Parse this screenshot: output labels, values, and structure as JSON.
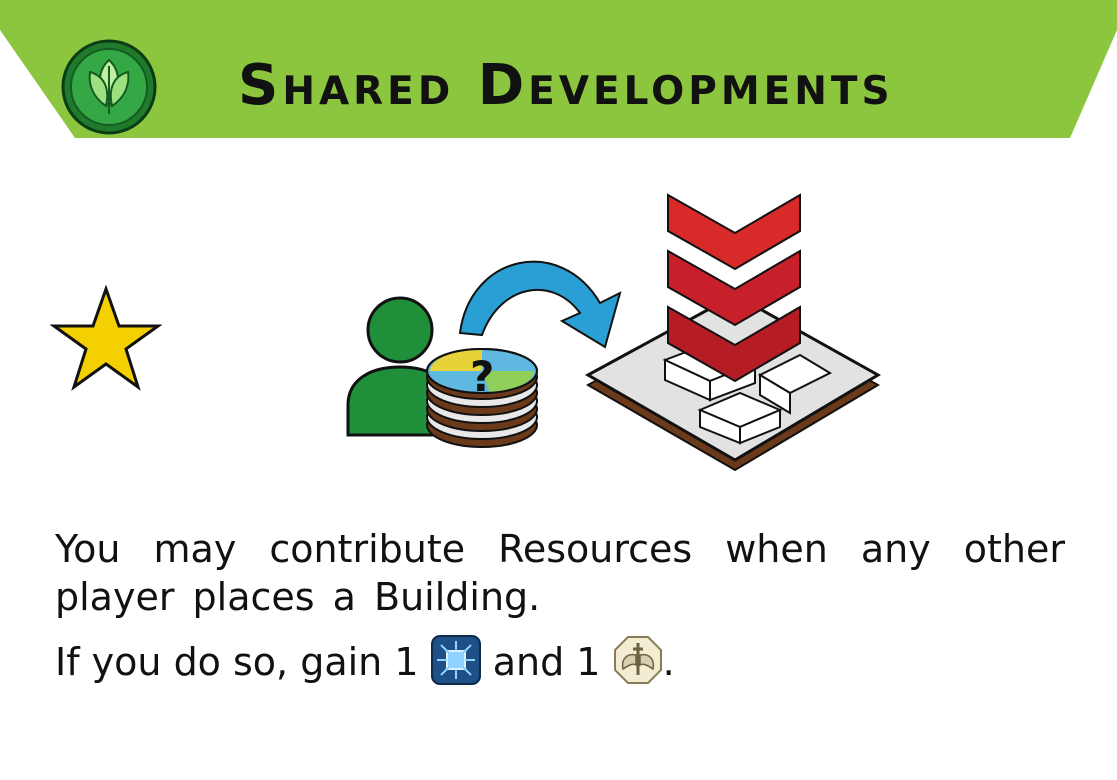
{
  "card": {
    "title": "Shared Developments",
    "icons": {
      "badge": "leaf-badge-icon",
      "cost": "star-icon",
      "illustration": "contribute-resources-illustration",
      "reward_1": "tech-chip-icon",
      "reward_2": "military-emblem-icon"
    },
    "colors": {
      "banner": "#8cc63f",
      "badge_green": "#2e9e3a",
      "star": "#f5d000",
      "player": "#1f8f3a",
      "arrow": "#2a9fd6",
      "chevron": "#c4202a"
    },
    "rule_line_1": "You may contribute Resources when any other player places a Building.",
    "rule_line_2_a": "If you do so, gain 1",
    "rule_line_2_b": "and 1",
    "rule_line_2_end": ".",
    "question_mark": "?"
  }
}
